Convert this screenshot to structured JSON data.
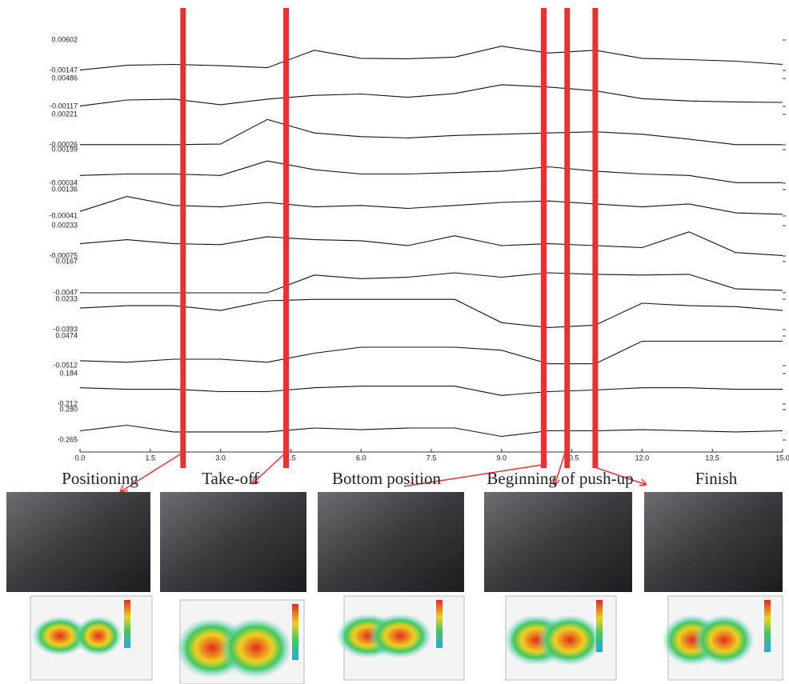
{
  "chart_data": {
    "type": "line",
    "x": [
      0,
      1,
      2,
      3,
      4,
      5,
      6,
      7,
      8,
      9,
      10,
      11,
      12,
      13,
      14,
      15
    ],
    "xlim": [
      0,
      15
    ],
    "xticks": [
      {
        "value": 0,
        "label": "0.0"
      },
      1.5,
      {
        "value": 3,
        "label": "3.0"
      },
      4.5,
      {
        "value": 6,
        "label": "6.0"
      },
      7.5,
      {
        "value": 9,
        "label": "9.0"
      },
      10.5,
      {
        "value": 12,
        "label": "12.0"
      },
      13.5,
      {
        "value": 15,
        "label": "15.0"
      }
    ],
    "line_color": "#111111",
    "marker_color": "#e8322e",
    "markers": [
      2.2,
      4.4,
      9.9,
      10.4,
      11.0
    ],
    "phases": [
      "Positioning",
      "Take-off",
      "Bottom position",
      "Beginning of push-up",
      "Finish"
    ],
    "series": [
      {
        "ylim": [
          -0.00147,
          0.00602
        ],
        "yticks": [
          -0.00147,
          0.00602
        ],
        "values": [
          -0.0014,
          -0.0002,
          0.0,
          -0.0003,
          -0.0008,
          0.0035,
          0.0015,
          0.0014,
          0.0018,
          0.0045,
          0.0028,
          0.0035,
          0.0015,
          0.0012,
          0.0008,
          0.0
        ]
      },
      {
        "ylim": [
          -0.00117,
          0.00486
        ],
        "yticks": [
          -0.00117,
          0.00486
        ],
        "values": [
          -0.0011,
          0.0002,
          0.0004,
          -0.0008,
          0.0004,
          0.0012,
          0.0015,
          0.0008,
          0.0016,
          0.0035,
          0.003,
          0.0022,
          0.0005,
          0.0,
          -0.0002,
          -0.0003
        ]
      },
      {
        "ylim": [
          -0.00026,
          0.00221
        ],
        "yticks": [
          -0.00026,
          0.00221
        ],
        "values": [
          -0.00025,
          -0.00025,
          -0.00025,
          -0.0002,
          0.0018,
          0.0007,
          0.0004,
          0.0003,
          0.0005,
          0.0006,
          0.0007,
          0.0008,
          0.0006,
          0.0002,
          -0.00025,
          -0.00025
        ]
      },
      {
        "ylim": [
          -0.00034,
          0.00199
        ],
        "yticks": [
          -0.00034,
          0.00199
        ],
        "values": [
          0.0002,
          0.0003,
          0.0003,
          0.0002,
          0.0012,
          0.0006,
          0.0003,
          0.0003,
          0.0004,
          0.0005,
          0.0008,
          0.0005,
          0.0003,
          0.0002,
          -0.0003,
          -0.0003
        ]
      },
      {
        "ylim": [
          -0.00041,
          0.00136
        ],
        "yticks": [
          -0.00041,
          0.00136
        ],
        "values": [
          -0.0001,
          0.0009,
          0.0003,
          0.0002,
          0.0005,
          0.0002,
          0.0003,
          0.0001,
          0.0003,
          0.0005,
          0.0006,
          0.0004,
          0.0002,
          0.0004,
          -0.0002,
          -0.0003
        ]
      },
      {
        "ylim": [
          -0.00075,
          0.00233
        ],
        "yticks": [
          -0.00075,
          0.00233
        ],
        "values": [
          0.0005,
          0.0009,
          0.0005,
          0.0004,
          0.0012,
          0.0009,
          0.0008,
          0.0003,
          0.0013,
          0.0003,
          0.0005,
          0.0003,
          0.0001,
          0.0017,
          -0.0004,
          -0.0007
        ]
      },
      {
        "ylim": [
          -0.0047,
          0.0167
        ],
        "yticks": [
          -0.0047,
          0.0167
        ],
        "values": [
          -0.0047,
          -0.0047,
          -0.0047,
          -0.0047,
          -0.0047,
          0.0075,
          0.005,
          0.006,
          0.009,
          0.006,
          0.009,
          0.008,
          0.0075,
          0.008,
          -0.002,
          -0.003
        ]
      },
      {
        "ylim": [
          -0.0393,
          0.0233
        ],
        "yticks": [
          -0.0393,
          0.0233
        ],
        "values": [
          0.005,
          0.01,
          0.01,
          0.0,
          0.02,
          0.023,
          0.023,
          0.023,
          0.023,
          -0.025,
          -0.035,
          -0.03,
          0.015,
          0.01,
          0.008,
          0.0
        ]
      },
      {
        "ylim": [
          -0.0512,
          0.0474
        ],
        "yticks": [
          -0.0512,
          0.0474
        ],
        "values": [
          -0.035,
          -0.04,
          -0.03,
          -0.03,
          -0.04,
          -0.01,
          0.01,
          0.01,
          0.01,
          0.0,
          -0.045,
          -0.045,
          0.03,
          0.03,
          0.03,
          0.03
        ]
      },
      {
        "ylim": [
          -0.212,
          0.184
        ],
        "yticks": [
          -0.212,
          0.184
        ],
        "values": [
          0.0,
          -0.02,
          -0.02,
          -0.05,
          -0.05,
          0.0,
          0.02,
          0.02,
          0.02,
          -0.1,
          -0.05,
          -0.03,
          0.0,
          0.0,
          -0.02,
          -0.02
        ]
      },
      {
        "ylim": [
          -0.265,
          0.28
        ],
        "yticks": [
          -0.265,
          {
            "value": 0.28,
            "label": "0.280"
          }
        ],
        "values": [
          -0.1,
          0.0,
          -0.12,
          -0.12,
          -0.12,
          -0.05,
          -0.08,
          -0.05,
          -0.05,
          -0.2,
          -0.1,
          -0.1,
          -0.08,
          -0.1,
          -0.12,
          -0.1
        ]
      }
    ]
  }
}
